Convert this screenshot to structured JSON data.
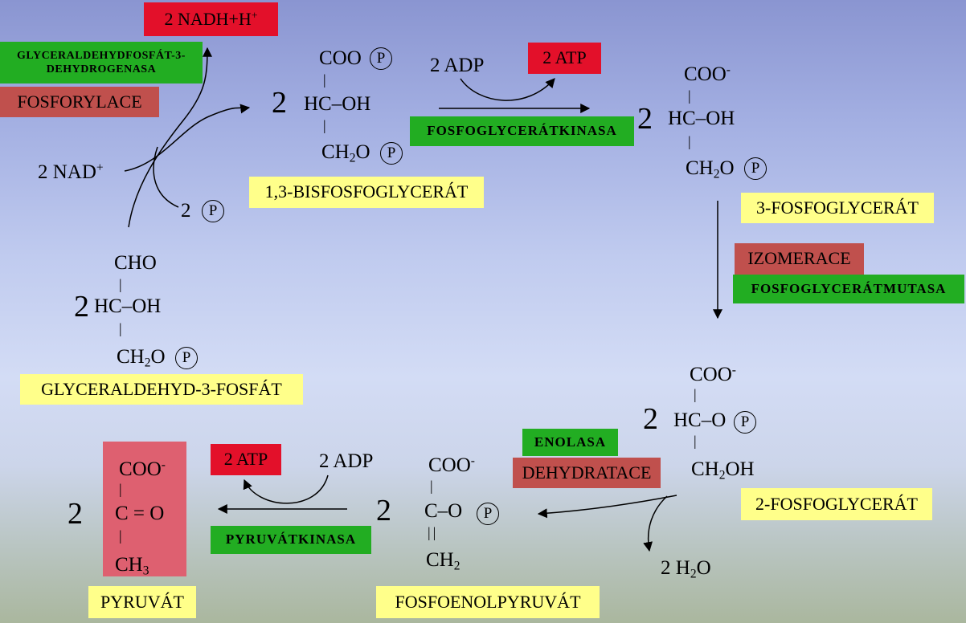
{
  "colors": {
    "label_yellow": "#ffff8a",
    "enzyme_green": "#22ad22",
    "energy_red": "#e3102a",
    "process_brown": "#c0504d",
    "product_pink": "#de6070"
  },
  "step1": {
    "product_nadh": {
      "text": "2 NADH+H",
      "sup": "+"
    },
    "enzyme_line1": "GLYCERALDEHYDFOSFÁT-3-",
    "enzyme_line2": "DEHYDROGENASA",
    "process": "FOSFORYLACE",
    "cofactor_nad": {
      "text": "2 NAD",
      "sup": "+"
    },
    "phosphate": {
      "coef": "2",
      "symbol": "P"
    }
  },
  "step2": {
    "substrate_adp": "2 ADP",
    "product_atp": "2 ATP",
    "enzyme": "FOSFOGLYCERÁTKINASA"
  },
  "step3": {
    "process": "IZOMERACE",
    "enzyme": "FOSFOGLYCERÁTMUTASA"
  },
  "step4": {
    "enzyme": "ENOLASA",
    "process": "DEHYDRATACE",
    "water": {
      "pre": "2 H",
      "sub": "2",
      "post": "O"
    }
  },
  "step5": {
    "substrate_adp": "2 ADP",
    "product_atp": "2 ATP",
    "enzyme": "PYRUVÁTKINASA"
  },
  "molecules": {
    "glyceraldehyde_3p": {
      "name": "GLYCERALDEHYD-3-FOSFÁT",
      "coef": "2",
      "row1": "CHO",
      "bond1": "|",
      "row2": "HC–OH",
      "bond2": "|",
      "row3": {
        "pre": "CH",
        "sub": "2",
        "post": "O"
      },
      "phosphate": "P"
    },
    "bisphosphoglycerate": {
      "name": "1,3-BISFOSFOGLYCERÁT",
      "coef": "2",
      "row1": "COO",
      "row1_phosphate": "P",
      "bond1": "|",
      "row2": "HC–OH",
      "bond2": "|",
      "row3": {
        "pre": "CH",
        "sub": "2",
        "post": "O"
      },
      "row3_phosphate": "P"
    },
    "phosphoglycerate_3": {
      "name": "3-FOSFOGLYCERÁT",
      "coef": "2",
      "row1": {
        "text": "COO",
        "sup": "-"
      },
      "bond1": "|",
      "row2": "HC–OH",
      "bond2": "|",
      "row3": {
        "pre": "CH",
        "sub": "2",
        "post": "O"
      },
      "phosphate": "P"
    },
    "phosphoglycerate_2": {
      "name": "2-FOSFOGLYCERÁT",
      "coef": "2",
      "row1": {
        "text": "COO",
        "sup": "-"
      },
      "bond1": "|",
      "row2": "HC–O",
      "row2_phosphate": "P",
      "bond2": "|",
      "row3": {
        "pre": "CH",
        "sub": "2",
        "post": "OH"
      }
    },
    "phosphoenolpyruvate": {
      "name": "FOSFOENOLPYRUVÁT",
      "coef": "2",
      "row1": {
        "text": "COO",
        "sup": "-"
      },
      "bond1": "|",
      "row2": "C–O",
      "row2_phosphate": "P",
      "bond2": "||",
      "row3": {
        "pre": "CH",
        "sub": "2",
        "post": ""
      }
    },
    "pyruvate": {
      "name": "PYRUVÁT",
      "coef": "2",
      "row1": {
        "text": "COO",
        "sup": "-"
      },
      "bond1": "|",
      "row2": "C = O",
      "bond2": "|",
      "row3": {
        "pre": "CH",
        "sub": "3",
        "post": ""
      }
    }
  }
}
